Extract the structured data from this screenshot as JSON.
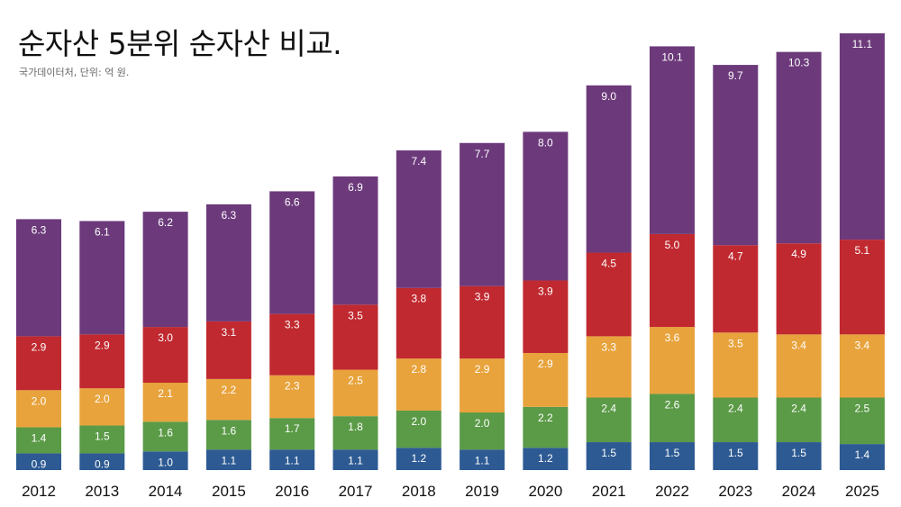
{
  "chart_data": {
    "type": "bar",
    "stacked": true,
    "title": "순자산 5분위 순자산 비교.",
    "subtitle": "국가데이터처, 단위: 억 원.",
    "categories": [
      "2012",
      "2013",
      "2014",
      "2015",
      "2016",
      "2017",
      "2018",
      "2019",
      "2020",
      "2021",
      "2022",
      "2023",
      "2024",
      "2025"
    ],
    "series": [
      {
        "color": "#2d5a93",
        "values": [
          0.9,
          0.9,
          1.0,
          1.1,
          1.1,
          1.1,
          1.2,
          1.1,
          1.2,
          1.5,
          1.5,
          1.5,
          1.5,
          1.4
        ]
      },
      {
        "color": "#5b9a47",
        "values": [
          1.4,
          1.5,
          1.6,
          1.6,
          1.7,
          1.8,
          2.0,
          2.0,
          2.2,
          2.4,
          2.6,
          2.4,
          2.4,
          2.5
        ]
      },
      {
        "color": "#e8a33c",
        "values": [
          2.0,
          2.0,
          2.1,
          2.2,
          2.3,
          2.5,
          2.8,
          2.9,
          2.9,
          3.3,
          3.6,
          3.5,
          3.4,
          3.4
        ]
      },
      {
        "color": "#c0292f",
        "values": [
          2.9,
          2.9,
          3.0,
          3.1,
          3.3,
          3.5,
          3.8,
          3.9,
          3.9,
          4.5,
          5.0,
          4.7,
          4.9,
          5.1
        ]
      },
      {
        "color": "#6c3a7b",
        "values": [
          6.3,
          6.1,
          6.2,
          6.3,
          6.6,
          6.9,
          7.4,
          7.7,
          8.0,
          9.0,
          10.1,
          9.7,
          10.3,
          11.1
        ]
      }
    ],
    "ylim": [
      0,
      23.5
    ],
    "grid": false,
    "legend": "none",
    "data_labels": true
  }
}
